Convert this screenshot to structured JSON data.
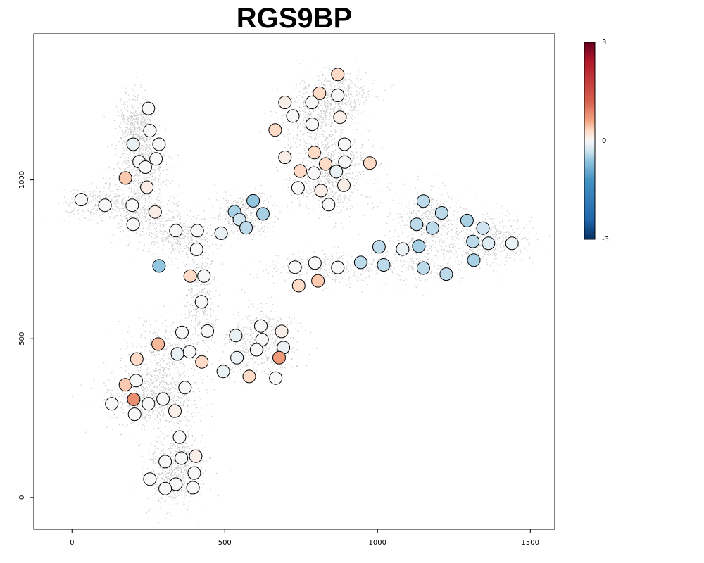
{
  "chart_data": {
    "type": "scatter",
    "title": "RGS9BP",
    "xlabel": "",
    "ylabel": "",
    "xlim": [
      -125,
      1580
    ],
    "ylim": [
      -100,
      1460
    ],
    "x_ticks": [
      0,
      500,
      1000,
      1500
    ],
    "y_ticks": [
      0,
      500,
      1000
    ],
    "grid": false,
    "legend": "colorbar-right",
    "colorbar": {
      "min": -3,
      "max": 3,
      "ticks": [
        3,
        0,
        -3
      ],
      "low_color": "#053061",
      "mid_color": "#f7f7f7",
      "high_color": "#67001f"
    },
    "background_points_color": "#c8c8c8",
    "background_clusters": [
      {
        "cx": 210,
        "cy": 1160,
        "sx": 30,
        "sy": 55,
        "n": 700
      },
      {
        "cx": 230,
        "cy": 1040,
        "sx": 40,
        "sy": 45,
        "n": 500
      },
      {
        "cx": 100,
        "cy": 930,
        "sx": 70,
        "sy": 25,
        "n": 500
      },
      {
        "cx": 240,
        "cy": 900,
        "sx": 55,
        "sy": 40,
        "n": 450
      },
      {
        "cx": 360,
        "cy": 820,
        "sx": 60,
        "sy": 35,
        "n": 450
      },
      {
        "cx": 560,
        "cy": 890,
        "sx": 45,
        "sy": 35,
        "n": 450
      },
      {
        "cx": 420,
        "cy": 640,
        "sx": 25,
        "sy": 90,
        "n": 450
      },
      {
        "cx": 860,
        "cy": 1260,
        "sx": 60,
        "sy": 40,
        "n": 600
      },
      {
        "cx": 780,
        "cy": 1180,
        "sx": 55,
        "sy": 50,
        "n": 450
      },
      {
        "cx": 850,
        "cy": 1020,
        "sx": 65,
        "sy": 60,
        "n": 900
      },
      {
        "cx": 1170,
        "cy": 880,
        "sx": 55,
        "sy": 45,
        "n": 500
      },
      {
        "cx": 1370,
        "cy": 810,
        "sx": 65,
        "sy": 40,
        "n": 550
      },
      {
        "cx": 1150,
        "cy": 760,
        "sx": 80,
        "sy": 40,
        "n": 350
      },
      {
        "cx": 850,
        "cy": 720,
        "sx": 110,
        "sy": 30,
        "n": 450
      },
      {
        "cx": 620,
        "cy": 490,
        "sx": 55,
        "sy": 55,
        "n": 700
      },
      {
        "cx": 300,
        "cy": 450,
        "sx": 60,
        "sy": 55,
        "n": 500
      },
      {
        "cx": 260,
        "cy": 310,
        "sx": 75,
        "sy": 40,
        "n": 900
      },
      {
        "cx": 340,
        "cy": 90,
        "sx": 45,
        "sy": 55,
        "n": 900
      }
    ],
    "points": [
      {
        "x": 250,
        "y": 1225,
        "v": 0.0
      },
      {
        "x": 255,
        "y": 1155,
        "v": 0.0
      },
      {
        "x": 200,
        "y": 1112,
        "v": -0.1
      },
      {
        "x": 285,
        "y": 1112,
        "v": 0.0
      },
      {
        "x": 220,
        "y": 1057,
        "v": 0.0
      },
      {
        "x": 275,
        "y": 1066,
        "v": 0.0
      },
      {
        "x": 240,
        "y": 1040,
        "v": 0.0
      },
      {
        "x": 175,
        "y": 1006,
        "v": 0.4
      },
      {
        "x": 245,
        "y": 977,
        "v": 0.1
      },
      {
        "x": 30,
        "y": 938,
        "v": 0.0
      },
      {
        "x": 108,
        "y": 920,
        "v": 0.0
      },
      {
        "x": 197,
        "y": 920,
        "v": 0.0
      },
      {
        "x": 272,
        "y": 899,
        "v": 0.1
      },
      {
        "x": 200,
        "y": 860,
        "v": 0.0
      },
      {
        "x": 340,
        "y": 840,
        "v": 0.0
      },
      {
        "x": 410,
        "y": 840,
        "v": 0.0
      },
      {
        "x": 488,
        "y": 832,
        "v": -0.1
      },
      {
        "x": 532,
        "y": 900,
        "v": -0.5
      },
      {
        "x": 548,
        "y": 875,
        "v": -0.3
      },
      {
        "x": 593,
        "y": 934,
        "v": -0.6
      },
      {
        "x": 625,
        "y": 893,
        "v": -0.5
      },
      {
        "x": 570,
        "y": 849,
        "v": -0.4
      },
      {
        "x": 408,
        "y": 781,
        "v": 0.0
      },
      {
        "x": 285,
        "y": 729,
        "v": -0.6
      },
      {
        "x": 387,
        "y": 697,
        "v": 0.3
      },
      {
        "x": 432,
        "y": 697,
        "v": 0.0
      },
      {
        "x": 424,
        "y": 616,
        "v": 0.0
      },
      {
        "x": 360,
        "y": 520,
        "v": 0.0
      },
      {
        "x": 443,
        "y": 524,
        "v": 0.0
      },
      {
        "x": 282,
        "y": 483,
        "v": 0.5
      },
      {
        "x": 345,
        "y": 452,
        "v": -0.1
      },
      {
        "x": 385,
        "y": 459,
        "v": 0.0
      },
      {
        "x": 425,
        "y": 427,
        "v": 0.3
      },
      {
        "x": 212,
        "y": 436,
        "v": 0.3
      },
      {
        "x": 370,
        "y": 346,
        "v": 0.0
      },
      {
        "x": 175,
        "y": 355,
        "v": 0.4
      },
      {
        "x": 210,
        "y": 368,
        "v": 0.0
      },
      {
        "x": 202,
        "y": 309,
        "v": 0.8
      },
      {
        "x": 298,
        "y": 310,
        "v": 0.0
      },
      {
        "x": 250,
        "y": 295,
        "v": 0.0
      },
      {
        "x": 130,
        "y": 295,
        "v": 0.0
      },
      {
        "x": 205,
        "y": 262,
        "v": 0.0
      },
      {
        "x": 337,
        "y": 272,
        "v": 0.1
      },
      {
        "x": 352,
        "y": 190,
        "v": 0.0
      },
      {
        "x": 405,
        "y": 130,
        "v": 0.1
      },
      {
        "x": 358,
        "y": 124,
        "v": 0.0
      },
      {
        "x": 305,
        "y": 113,
        "v": 0.0
      },
      {
        "x": 400,
        "y": 77,
        "v": 0.0
      },
      {
        "x": 255,
        "y": 58,
        "v": 0.0
      },
      {
        "x": 340,
        "y": 42,
        "v": 0.0
      },
      {
        "x": 305,
        "y": 28,
        "v": 0.0
      },
      {
        "x": 396,
        "y": 31,
        "v": 0.0
      },
      {
        "x": 495,
        "y": 397,
        "v": -0.1
      },
      {
        "x": 540,
        "y": 440,
        "v": -0.1
      },
      {
        "x": 536,
        "y": 510,
        "v": -0.1
      },
      {
        "x": 618,
        "y": 540,
        "v": 0.0
      },
      {
        "x": 622,
        "y": 497,
        "v": 0.0
      },
      {
        "x": 604,
        "y": 465,
        "v": 0.0
      },
      {
        "x": 686,
        "y": 523,
        "v": 0.1
      },
      {
        "x": 692,
        "y": 472,
        "v": -0.1
      },
      {
        "x": 678,
        "y": 440,
        "v": 0.7
      },
      {
        "x": 580,
        "y": 381,
        "v": 0.3
      },
      {
        "x": 667,
        "y": 376,
        "v": 0.0
      },
      {
        "x": 870,
        "y": 1332,
        "v": 0.3
      },
      {
        "x": 810,
        "y": 1273,
        "v": 0.3
      },
      {
        "x": 870,
        "y": 1266,
        "v": 0.0
      },
      {
        "x": 697,
        "y": 1244,
        "v": 0.1
      },
      {
        "x": 785,
        "y": 1244,
        "v": 0.0
      },
      {
        "x": 723,
        "y": 1201,
        "v": 0.0
      },
      {
        "x": 877,
        "y": 1197,
        "v": 0.1
      },
      {
        "x": 786,
        "y": 1175,
        "v": 0.0
      },
      {
        "x": 665,
        "y": 1157,
        "v": 0.3
      },
      {
        "x": 892,
        "y": 1112,
        "v": 0.0
      },
      {
        "x": 793,
        "y": 1086,
        "v": 0.3
      },
      {
        "x": 697,
        "y": 1071,
        "v": 0.1
      },
      {
        "x": 830,
        "y": 1050,
        "v": 0.3
      },
      {
        "x": 893,
        "y": 1056,
        "v": 0.0
      },
      {
        "x": 975,
        "y": 1053,
        "v": 0.3
      },
      {
        "x": 747,
        "y": 1028,
        "v": 0.3
      },
      {
        "x": 792,
        "y": 1021,
        "v": 0.0
      },
      {
        "x": 865,
        "y": 1026,
        "v": -0.1
      },
      {
        "x": 740,
        "y": 975,
        "v": 0.0
      },
      {
        "x": 815,
        "y": 966,
        "v": 0.1
      },
      {
        "x": 890,
        "y": 983,
        "v": 0.1
      },
      {
        "x": 840,
        "y": 922,
        "v": 0.0
      },
      {
        "x": 730,
        "y": 725,
        "v": 0.0
      },
      {
        "x": 795,
        "y": 738,
        "v": 0.0
      },
      {
        "x": 742,
        "y": 667,
        "v": 0.3
      },
      {
        "x": 805,
        "y": 682,
        "v": 0.4
      },
      {
        "x": 870,
        "y": 724,
        "v": 0.0
      },
      {
        "x": 945,
        "y": 740,
        "v": -0.4
      },
      {
        "x": 1005,
        "y": 789,
        "v": -0.4
      },
      {
        "x": 1020,
        "y": 732,
        "v": -0.4
      },
      {
        "x": 1082,
        "y": 782,
        "v": -0.1
      },
      {
        "x": 1135,
        "y": 791,
        "v": -0.5
      },
      {
        "x": 1150,
        "y": 722,
        "v": -0.4
      },
      {
        "x": 1225,
        "y": 703,
        "v": -0.4
      },
      {
        "x": 1128,
        "y": 860,
        "v": -0.4
      },
      {
        "x": 1150,
        "y": 933,
        "v": -0.4
      },
      {
        "x": 1180,
        "y": 848,
        "v": -0.4
      },
      {
        "x": 1210,
        "y": 896,
        "v": -0.4
      },
      {
        "x": 1293,
        "y": 872,
        "v": -0.5
      },
      {
        "x": 1345,
        "y": 848,
        "v": -0.3
      },
      {
        "x": 1312,
        "y": 806,
        "v": -0.4
      },
      {
        "x": 1363,
        "y": 800,
        "v": -0.2
      },
      {
        "x": 1315,
        "y": 747,
        "v": -0.5
      },
      {
        "x": 1440,
        "y": 800,
        "v": -0.1
      }
    ]
  }
}
